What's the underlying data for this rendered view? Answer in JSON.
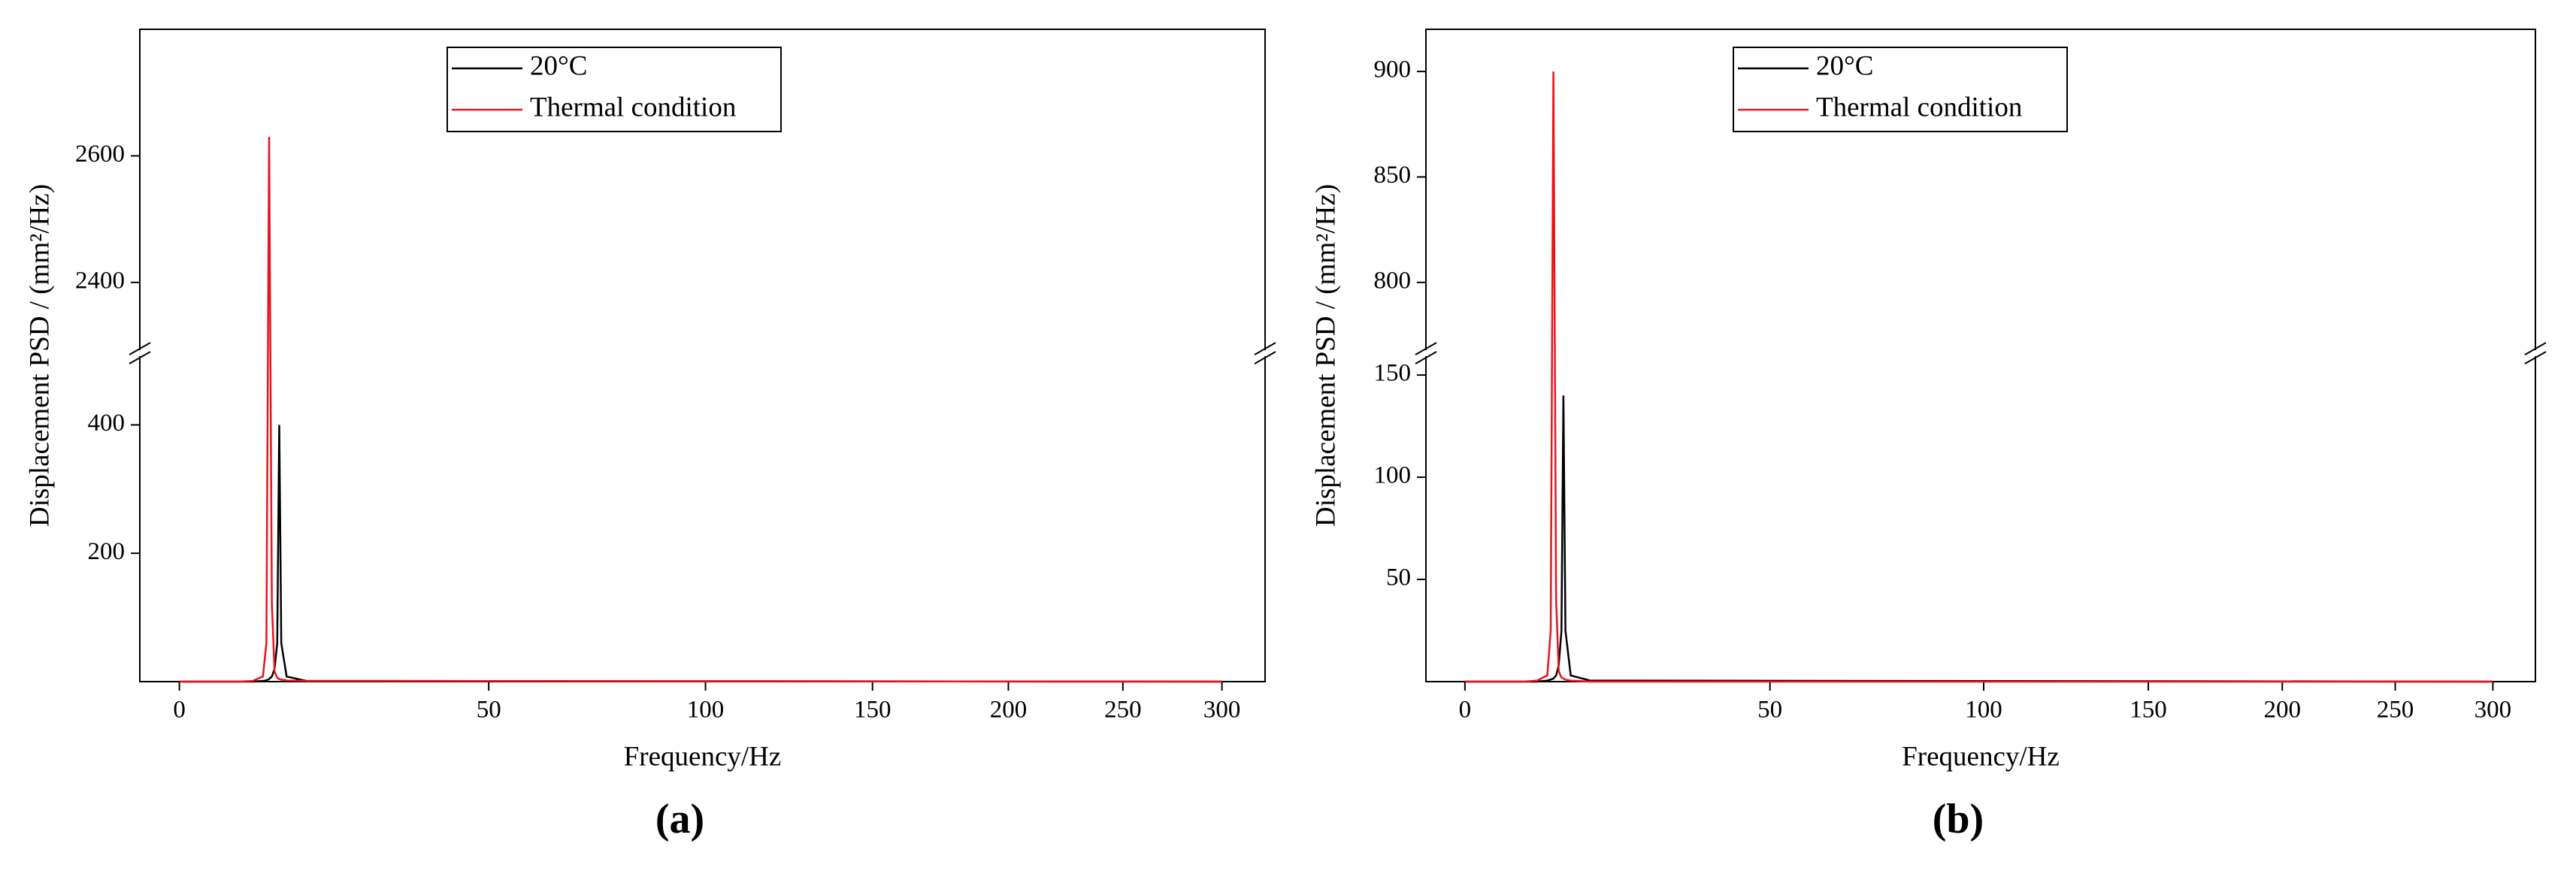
{
  "chart_data": [
    {
      "type": "line",
      "caption": "(a)",
      "xlabel": "Frequency/Hz",
      "ylabel": "Displacement PSD / (mm²/Hz)",
      "x": [
        0,
        8,
        10,
        11.5,
        12,
        12.4,
        12.8,
        13.2,
        13.6,
        13.9,
        14.2,
        15,
        18,
        300
      ],
      "series": [
        {
          "name": "20°C",
          "color": "#000000",
          "values": [
            0,
            0,
            0,
            1,
            2,
            4,
            8,
            20,
            60,
            400,
            60,
            8,
            1,
            0
          ]
        },
        {
          "name": "Thermal condition",
          "color": "#e8141b",
          "values": [
            0,
            0,
            1,
            8,
            60,
            2630,
            120,
            15,
            6,
            4,
            3,
            2,
            1,
            0
          ]
        }
      ],
      "xlim": [
        -5,
        324
      ],
      "xticks": [
        0,
        50,
        100,
        150,
        200,
        250,
        300
      ],
      "ylim": [
        0,
        2800
      ],
      "ybreak": [
        500,
        2300
      ],
      "yticks": [
        200,
        400,
        2400,
        2600
      ]
    },
    {
      "type": "line",
      "caption": "(b)",
      "xlabel": "Frequency/Hz",
      "ylabel": "Displacement PSD / (mm²/Hz)",
      "x": [
        0,
        8,
        10,
        11.5,
        12,
        12.4,
        12.8,
        13.2,
        13.6,
        13.9,
        14.2,
        15,
        18,
        300
      ],
      "series": [
        {
          "name": "20°C",
          "color": "#000000",
          "values": [
            0,
            0,
            0,
            0.5,
            1,
            1.5,
            3,
            8,
            25,
            140,
            25,
            3,
            0.5,
            0
          ]
        },
        {
          "name": "Thermal condition",
          "color": "#e8141b",
          "values": [
            0,
            0,
            0.5,
            3,
            25,
            900,
            40,
            5,
            2,
            1.5,
            1,
            0.5,
            0,
            0
          ]
        }
      ],
      "xlim": [
        -5,
        324
      ],
      "xticks": [
        0,
        50,
        100,
        150,
        200,
        250,
        300
      ],
      "ylim": [
        0,
        920
      ],
      "ybreak": [
        157,
        770
      ],
      "yticks": [
        50,
        100,
        150,
        800,
        850,
        900
      ]
    }
  ]
}
